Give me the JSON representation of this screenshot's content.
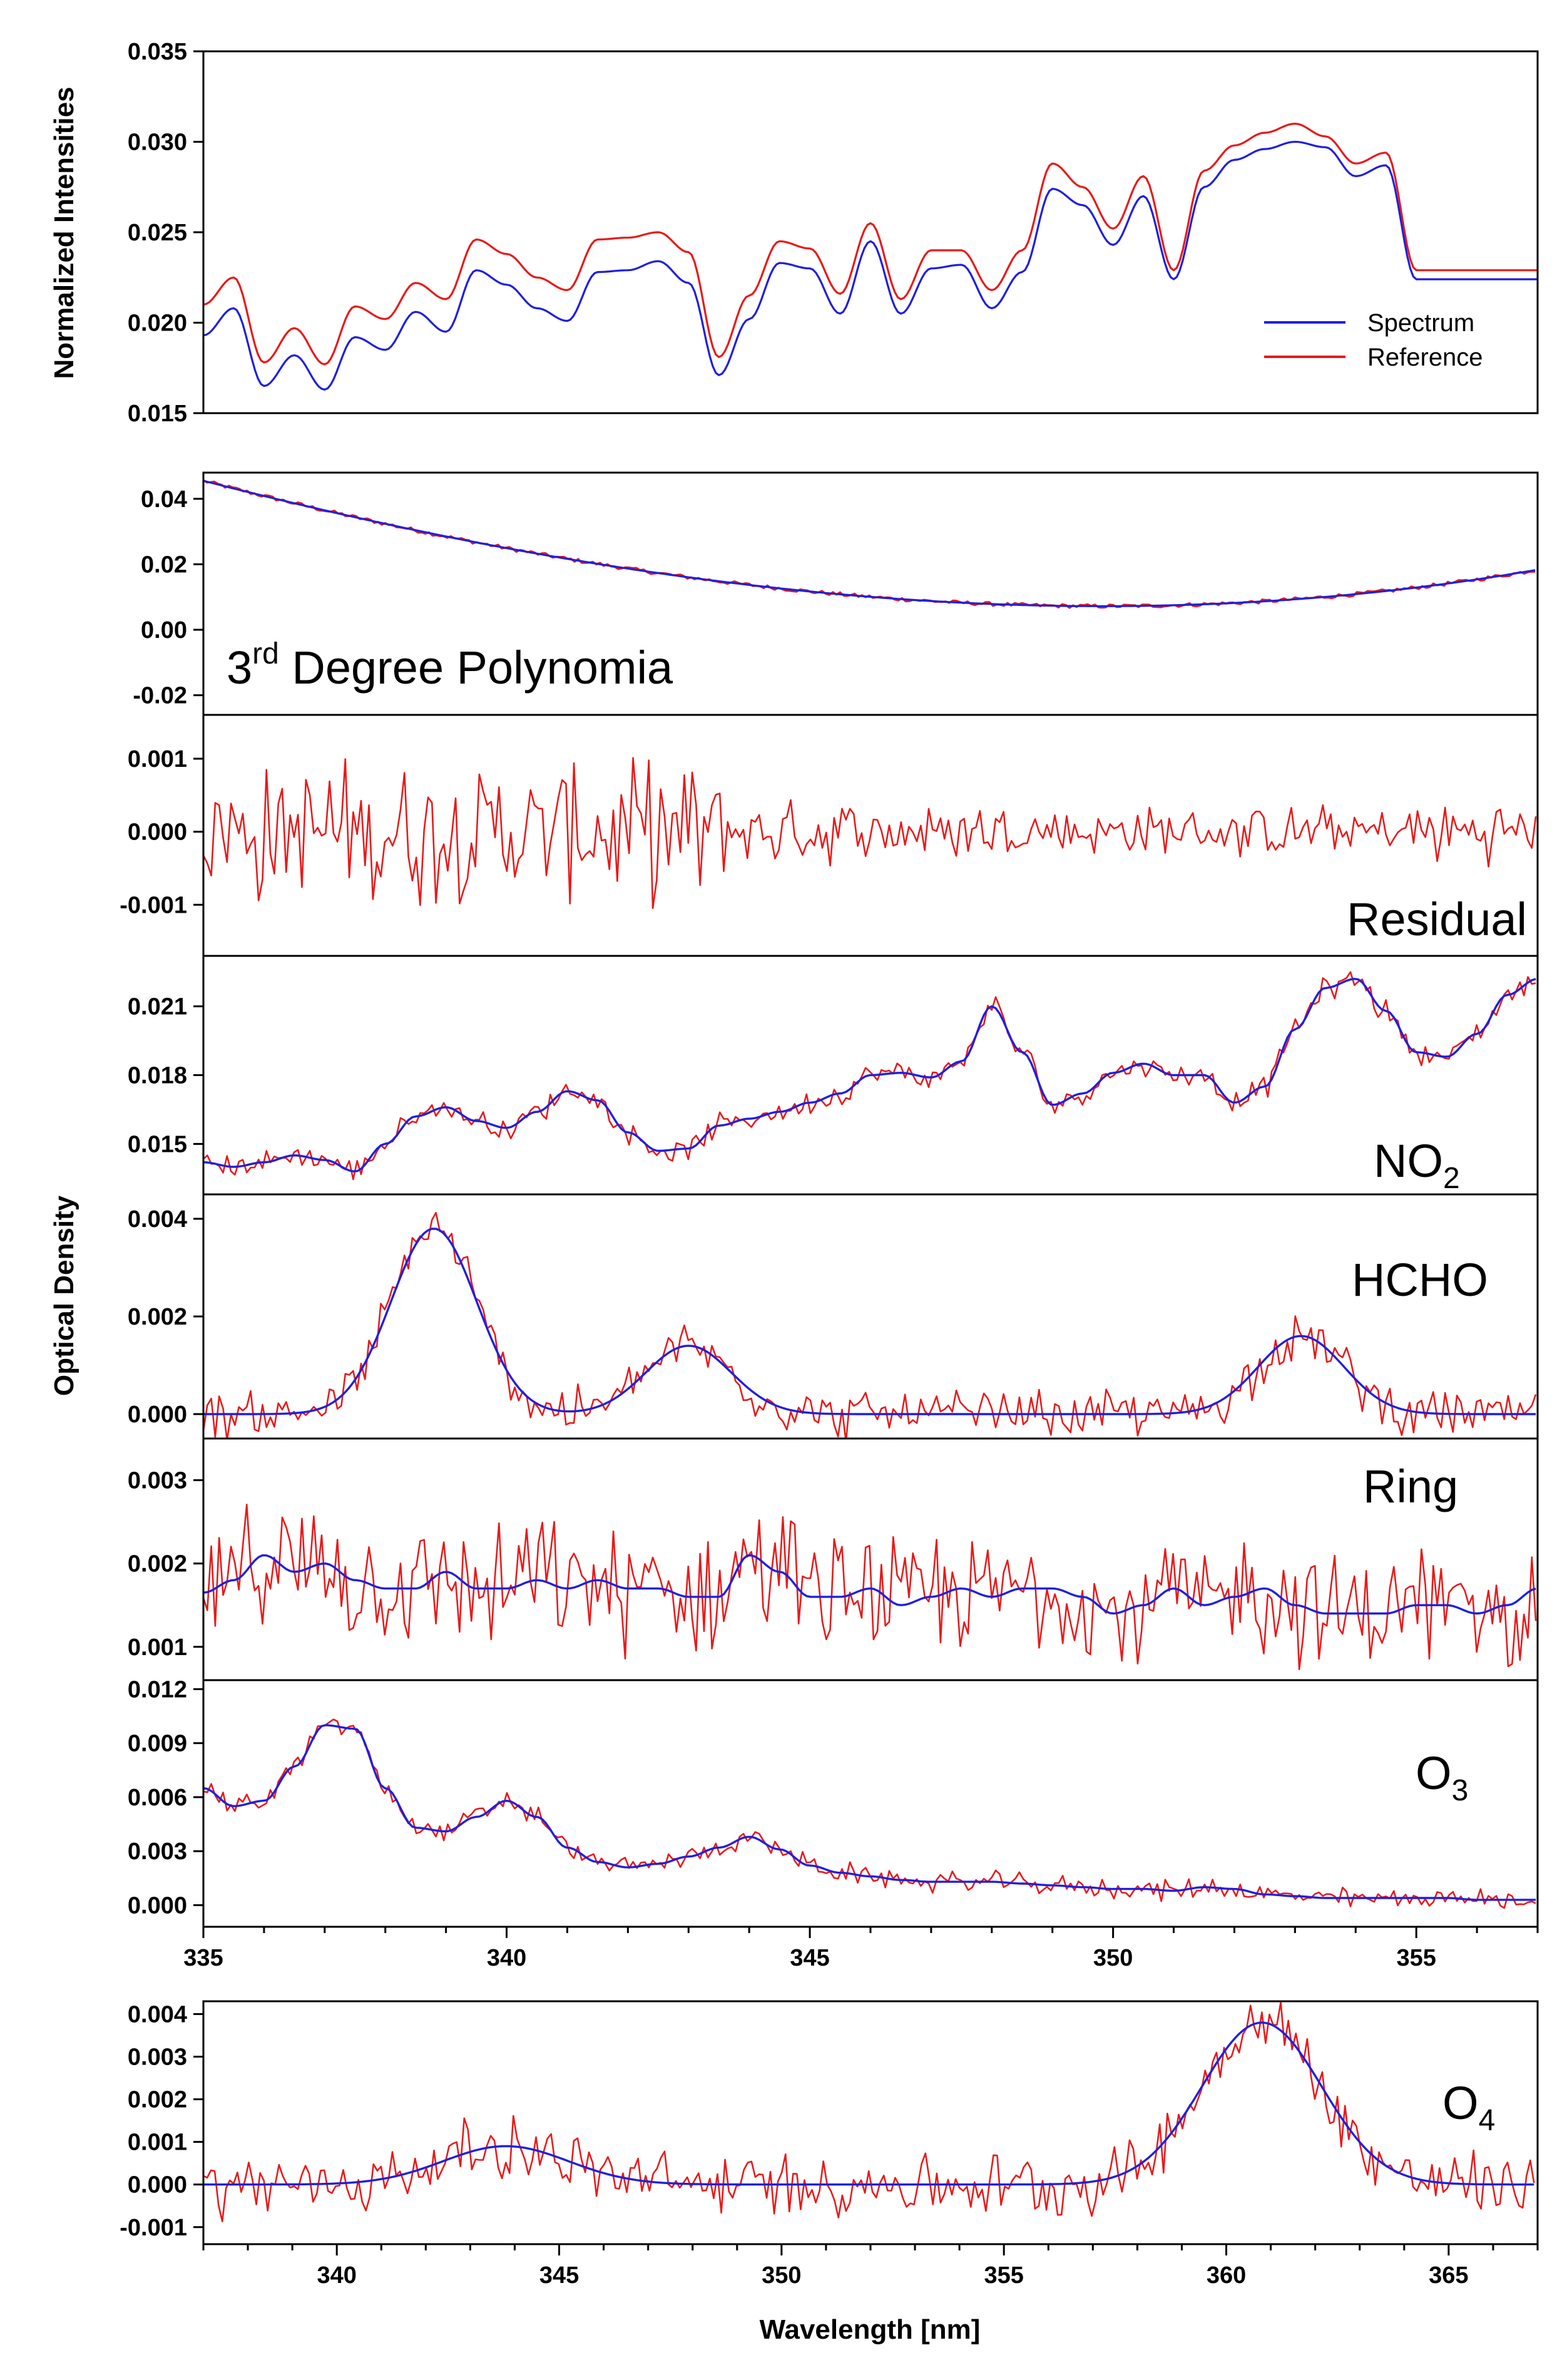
{
  "colors": {
    "spectrum": "#1f1fe0",
    "reference": "#e81a1a",
    "fit": "#1f1fe0",
    "measured": "#e81a1a",
    "axis": "#000000"
  },
  "y_titles": {
    "top": "Normalized Intensities",
    "middle": "Optical Density"
  },
  "x_title": "Wavelength [nm]",
  "legend": {
    "spectrum": "Spectrum",
    "reference": "Reference"
  },
  "chart_data": [
    {
      "id": "intensities",
      "type": "line",
      "ylabel": "Normalized Intensities",
      "xlim": [
        335,
        357
      ],
      "ylim": [
        0.015,
        0.035
      ],
      "yticks": [
        "0.015",
        "0.020",
        "0.025",
        "0.030",
        "0.035"
      ],
      "legend_position": "bottom-right",
      "series": [
        {
          "name": "Spectrum",
          "x": [
            335,
            335.5,
            336,
            336.5,
            337,
            337.5,
            338,
            338.5,
            339,
            339.5,
            340,
            340.5,
            341,
            341.5,
            342,
            342.5,
            343,
            343.5,
            344,
            344.5,
            345,
            345.5,
            346,
            346.5,
            347,
            347.5,
            348,
            348.5,
            349,
            349.5,
            350,
            350.5,
            351,
            351.5,
            352,
            352.5,
            353,
            353.5,
            354,
            354.5,
            355,
            355.5,
            356,
            356.5,
            357
          ],
          "y": [
            0.0193,
            0.0208,
            0.0165,
            0.0182,
            0.0163,
            0.0192,
            0.0185,
            0.0206,
            0.0195,
            0.0229,
            0.0221,
            0.0208,
            0.0201,
            0.0228,
            0.0229,
            0.0234,
            0.0222,
            0.0171,
            0.0202,
            0.0233,
            0.023,
            0.0205,
            0.0245,
            0.0205,
            0.023,
            0.0232,
            0.0208,
            0.0228,
            0.0274,
            0.0265,
            0.0243,
            0.027,
            0.0224,
            0.0275,
            0.029,
            0.0296,
            0.03,
            0.0297,
            0.0281,
            0.0287,
            0.0224,
            0.0224,
            0.0224,
            0.0224,
            0.0224
          ]
        },
        {
          "name": "Reference",
          "x": [
            335,
            335.5,
            336,
            336.5,
            337,
            337.5,
            338,
            338.5,
            339,
            339.5,
            340,
            340.5,
            341,
            341.5,
            342,
            342.5,
            343,
            343.5,
            344,
            344.5,
            345,
            345.5,
            346,
            346.5,
            347,
            347.5,
            348,
            348.5,
            349,
            349.5,
            350,
            350.5,
            351,
            351.5,
            352,
            352.5,
            353,
            353.5,
            354,
            354.5,
            355,
            355.5,
            356,
            356.5,
            357
          ],
          "y": [
            0.021,
            0.0225,
            0.0178,
            0.0197,
            0.0177,
            0.0209,
            0.0202,
            0.0222,
            0.0213,
            0.0246,
            0.0238,
            0.0225,
            0.0218,
            0.0246,
            0.0247,
            0.025,
            0.0239,
            0.0181,
            0.0215,
            0.0245,
            0.0241,
            0.0216,
            0.0255,
            0.0213,
            0.024,
            0.024,
            0.0218,
            0.024,
            0.0288,
            0.0275,
            0.0252,
            0.0281,
            0.0229,
            0.0284,
            0.0298,
            0.0305,
            0.031,
            0.0303,
            0.0288,
            0.0294,
            0.0229,
            0.0229,
            0.0229,
            0.0229,
            0.0229
          ]
        }
      ]
    },
    {
      "id": "polynomial",
      "type": "line",
      "label": "3rd Degree Polynomia",
      "label_base": "3",
      "label_sup": "rd",
      "label_rest": " Degree Polynomia",
      "xlim": [
        335,
        357
      ],
      "ylim": [
        -0.026,
        0.048
      ],
      "yticks": [
        "0.04",
        "0.02",
        "0.00",
        "-0.02"
      ],
      "ytick_values": [
        0.04,
        0.02,
        0.0,
        -0.02
      ],
      "fit": {
        "a": 0.0455,
        "b": -0.00475,
        "c": 0.000118,
        "d": 1.9e-06
      }
    },
    {
      "id": "residual",
      "type": "line",
      "label": "Residual",
      "xlim": [
        335,
        357
      ],
      "ylim": [
        -0.0017,
        0.0016
      ],
      "yticks": [
        "0.001",
        "0.000",
        "-0.001"
      ],
      "ytick_values": [
        0.001,
        0.0,
        -0.001
      ],
      "noise_amp": [
        0.0011,
        0.0011,
        0.0011,
        0.0011,
        0.0005,
        0.0005,
        0.0004,
        0.0004,
        0.0004,
        0.0005
      ]
    },
    {
      "id": "no2",
      "type": "line",
      "label": "NO",
      "label_sub": "2",
      "xlim": [
        335,
        357
      ],
      "ylim": [
        0.0128,
        0.0232
      ],
      "yticks": [
        "0.021",
        "0.018",
        "0.015"
      ],
      "ytick_values": [
        0.021,
        0.018,
        0.015
      ],
      "fit_x": [
        335,
        335.5,
        336,
        336.5,
        337,
        337.5,
        338,
        338.5,
        339,
        339.5,
        340,
        340.5,
        341,
        341.5,
        342,
        342.5,
        343,
        343.5,
        344,
        344.5,
        345,
        345.5,
        346,
        346.5,
        347,
        347.5,
        348,
        348.5,
        349,
        349.5,
        350,
        350.5,
        351,
        351.5,
        352,
        352.5,
        353,
        353.5,
        354,
        354.5,
        355,
        355.5,
        356,
        356.5,
        357
      ],
      "fit_y": [
        0.0142,
        0.014,
        0.0142,
        0.0145,
        0.0143,
        0.0138,
        0.015,
        0.0162,
        0.0166,
        0.016,
        0.0157,
        0.0164,
        0.0173,
        0.0169,
        0.0155,
        0.0147,
        0.0148,
        0.0158,
        0.0161,
        0.0164,
        0.0168,
        0.0172,
        0.018,
        0.0181,
        0.0179,
        0.0186,
        0.021,
        0.019,
        0.0167,
        0.0172,
        0.0181,
        0.0185,
        0.018,
        0.018,
        0.0168,
        0.0175,
        0.02,
        0.0218,
        0.0222,
        0.0208,
        0.019,
        0.0188,
        0.0198,
        0.0215,
        0.0222
      ],
      "noise_amp": 0.0006
    },
    {
      "id": "hcho",
      "type": "line",
      "label": "HCHO",
      "xlim": [
        335,
        357
      ],
      "ylim": [
        -0.0005,
        0.0045
      ],
      "yticks": [
        "0.004",
        "0.002",
        "0.000"
      ],
      "ytick_values": [
        0.004,
        0.002,
        0.0
      ],
      "peaks": [
        {
          "x": 338.8,
          "h": 0.0038,
          "w": 1.0
        },
        {
          "x": 343.0,
          "h": 0.0014,
          "w": 1.0
        },
        {
          "x": 353.1,
          "h": 0.0016,
          "w": 1.0
        }
      ],
      "noise_amp": 0.0006
    },
    {
      "id": "ring",
      "type": "line",
      "label": "Ring",
      "xlim": [
        335,
        357
      ],
      "ylim": [
        0.0006,
        0.0035
      ],
      "yticks": [
        "0.003",
        "0.002",
        "0.001"
      ],
      "ytick_values": [
        0.003,
        0.002,
        0.001
      ],
      "fit_x": [
        335,
        335.5,
        336,
        336.5,
        337,
        337.5,
        338,
        338.5,
        339,
        339.5,
        340,
        340.5,
        341,
        341.5,
        342,
        342.5,
        343,
        343.5,
        344,
        344.5,
        345,
        345.5,
        346,
        346.5,
        347,
        347.5,
        348,
        348.5,
        349,
        349.5,
        350,
        350.5,
        351,
        351.5,
        352,
        352.5,
        353,
        353.5,
        354,
        354.5,
        355,
        355.5,
        356,
        356.5,
        357
      ],
      "fit_y": [
        0.00165,
        0.0018,
        0.0021,
        0.0019,
        0.002,
        0.0018,
        0.0017,
        0.0017,
        0.0019,
        0.0017,
        0.0017,
        0.0018,
        0.0017,
        0.0018,
        0.0017,
        0.0017,
        0.0016,
        0.0016,
        0.0021,
        0.0019,
        0.0016,
        0.0016,
        0.0017,
        0.0015,
        0.0016,
        0.0017,
        0.0016,
        0.0017,
        0.0017,
        0.0016,
        0.0014,
        0.0015,
        0.0017,
        0.0015,
        0.0016,
        0.0017,
        0.0015,
        0.0014,
        0.0014,
        0.0014,
        0.0015,
        0.0015,
        0.0014,
        0.0015,
        0.0017
      ],
      "noise_amp": 0.0009
    },
    {
      "id": "o3",
      "type": "line",
      "label": "O",
      "label_sub": "3",
      "xlim": [
        335,
        357
      ],
      "ylim": [
        -0.0012,
        0.0125
      ],
      "yticks": [
        "0.012",
        "0.009",
        "0.006",
        "0.003",
        "0.000"
      ],
      "ytick_values": [
        0.012,
        0.009,
        0.006,
        0.003,
        0.0
      ],
      "xticks": [
        335,
        340,
        345,
        350,
        355
      ],
      "fit_x": [
        335,
        335.5,
        336,
        336.5,
        337,
        337.5,
        338,
        338.5,
        339,
        339.5,
        340,
        340.5,
        341,
        341.5,
        342,
        342.5,
        343,
        343.5,
        344,
        344.5,
        345,
        345.5,
        346,
        346.5,
        347,
        347.5,
        348,
        348.5,
        349,
        349.5,
        350,
        350.5,
        351,
        351.5,
        352,
        352.5,
        353,
        353.5,
        354,
        354.5,
        355,
        355.5,
        356,
        356.5,
        357
      ],
      "fit_y": [
        0.0065,
        0.0055,
        0.0058,
        0.0077,
        0.01,
        0.0098,
        0.0065,
        0.0043,
        0.0041,
        0.0049,
        0.0058,
        0.0049,
        0.0032,
        0.0024,
        0.0021,
        0.0023,
        0.0027,
        0.0032,
        0.0038,
        0.0031,
        0.0022,
        0.0018,
        0.0016,
        0.0014,
        0.0013,
        0.0013,
        0.0013,
        0.0012,
        0.0011,
        0.001,
        0.0009,
        0.0009,
        0.0008,
        0.001,
        0.0009,
        0.0006,
        0.0005,
        0.0004,
        0.0004,
        0.0004,
        0.0004,
        0.0004,
        0.0003,
        0.0003,
        0.0003
      ],
      "noise_amp": 0.0007
    },
    {
      "id": "o4",
      "type": "line",
      "label": "O",
      "label_sub": "4",
      "xlim": [
        337,
        367
      ],
      "ylim": [
        -0.0014,
        0.0043
      ],
      "yticks": [
        "0.004",
        "0.003",
        "0.002",
        "0.001",
        "0.000",
        "-0.001"
      ],
      "ytick_values": [
        0.004,
        0.003,
        0.002,
        0.001,
        0.0,
        -0.001
      ],
      "xticks": [
        340,
        345,
        350,
        355,
        360,
        365
      ],
      "peaks": [
        {
          "x": 343.8,
          "h": 0.0009,
          "w": 2.0
        },
        {
          "x": 360.8,
          "h": 0.0038,
          "w": 1.9
        }
      ],
      "noise_amp": 0.0009
    }
  ]
}
